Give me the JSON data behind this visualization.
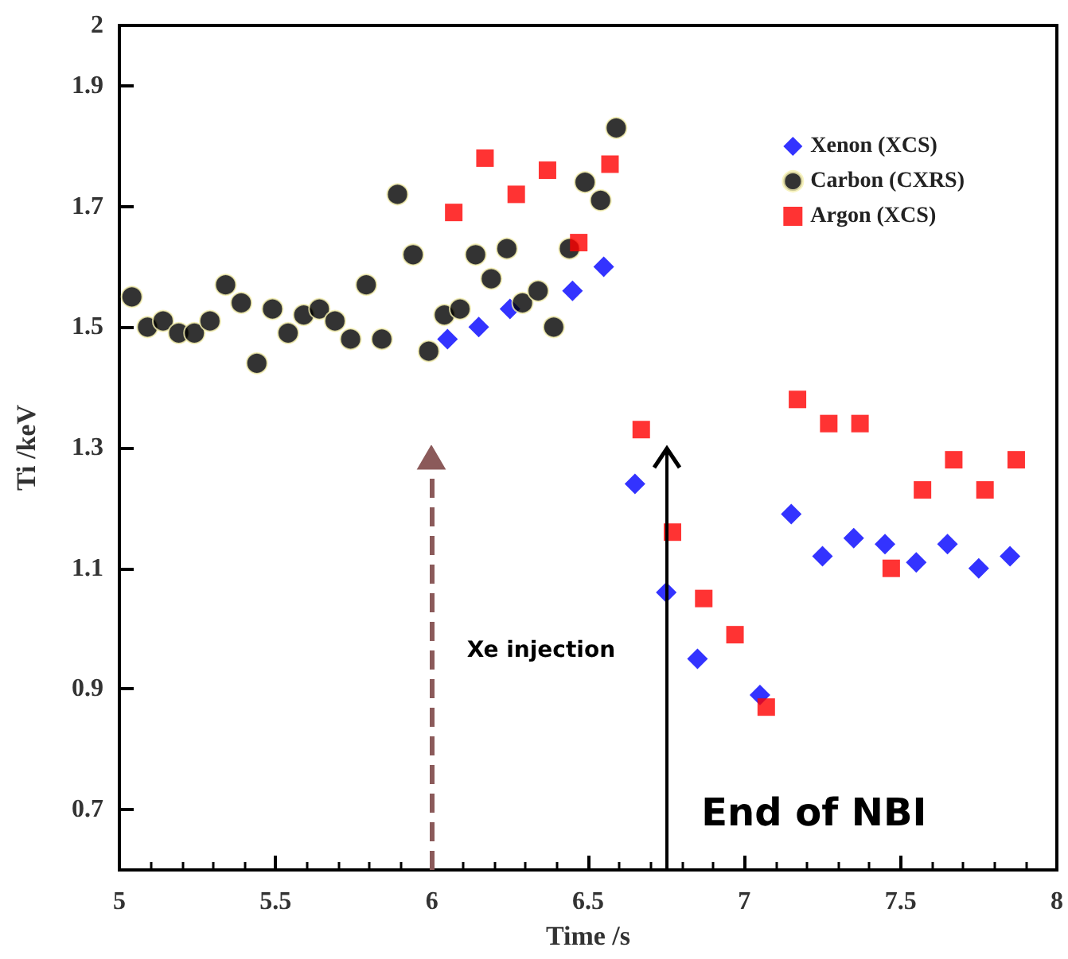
{
  "chart_data": {
    "type": "scatter",
    "xlabel": "Time /s",
    "ylabel": "Ti /keV",
    "xlim": [
      5,
      8
    ],
    "xticks": [
      5,
      5.5,
      6,
      6.5,
      7,
      7.5,
      8
    ],
    "ylim": [
      0.6,
      2
    ],
    "yticks": [
      0.7,
      0.9,
      1.1,
      1.3,
      1.5,
      1.7,
      1.9,
      2
    ],
    "grid": false,
    "legend": "top right",
    "series": [
      {
        "name": "Xenon (XCS)",
        "color": "#0000ff",
        "marker": "diamond",
        "x": [
          6.05,
          6.15,
          6.25,
          6.45,
          6.55,
          6.65,
          6.75,
          6.85,
          7.05,
          7.15,
          7.25,
          7.35,
          7.45,
          7.55,
          7.65,
          7.75,
          7.85
        ],
        "values": [
          1.48,
          1.5,
          1.53,
          1.56,
          1.6,
          1.24,
          1.06,
          0.95,
          0.89,
          1.19,
          1.12,
          1.15,
          1.14,
          1.11,
          1.14,
          1.1,
          1.12
        ]
      },
      {
        "name": "Carbon (CXRS)",
        "color": "#000000",
        "marker": "circle",
        "x": [
          5.04,
          5.09,
          5.14,
          5.19,
          5.24,
          5.29,
          5.34,
          5.39,
          5.44,
          5.49,
          5.54,
          5.59,
          5.64,
          5.69,
          5.74,
          5.79,
          5.84,
          5.89,
          5.94,
          5.99,
          6.04,
          6.09,
          6.14,
          6.19,
          6.24,
          6.29,
          6.34,
          6.39,
          6.44,
          6.49,
          6.54,
          6.59
        ],
        "values": [
          1.55,
          1.5,
          1.51,
          1.49,
          1.49,
          1.51,
          1.57,
          1.54,
          1.44,
          1.53,
          1.49,
          1.52,
          1.53,
          1.51,
          1.48,
          1.57,
          1.48,
          1.72,
          1.62,
          1.46,
          1.52,
          1.53,
          1.62,
          1.58,
          1.63,
          1.54,
          1.56,
          1.5,
          1.63,
          1.74,
          1.71,
          1.83
        ]
      },
      {
        "name": "Argon (XCS)",
        "color": "#ff0000",
        "marker": "square",
        "x": [
          6.07,
          6.17,
          6.27,
          6.37,
          6.47,
          6.57,
          6.67,
          6.77,
          6.87,
          6.97,
          7.07,
          7.17,
          7.27,
          7.37,
          7.47,
          7.57,
          7.67,
          7.77,
          7.87
        ],
        "values": [
          1.69,
          1.78,
          1.72,
          1.76,
          1.64,
          1.77,
          1.33,
          1.16,
          1.05,
          0.99,
          0.87,
          1.38,
          1.34,
          1.34,
          1.1,
          1.23,
          1.28,
          1.23,
          1.28
        ]
      }
    ],
    "ref_lines": [
      {
        "axis": "x",
        "value": 6,
        "label": "Xe injection",
        "color": "#8b5a5a",
        "line_style": "dashed"
      },
      {
        "axis": "x",
        "value": 6.75,
        "label": "End of NBI",
        "color": "#000000",
        "line_style": "solid"
      }
    ]
  }
}
